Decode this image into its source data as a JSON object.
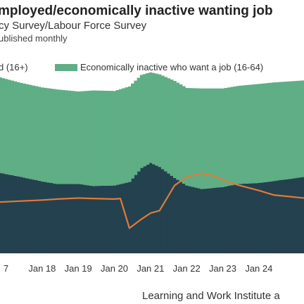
{
  "header": {
    "title": "mployed/economically inactive wanting job",
    "subtitle": "cy Survey/Labour Force Survey",
    "note": "ublished monthly"
  },
  "source": "Learning and Work Institute a",
  "chart_data": {
    "type": "area",
    "x_start": "2016-11",
    "x_end": "2025-04",
    "xticks": [
      {
        "date": "2017-01",
        "label": "7"
      },
      {
        "date": "2018-01",
        "label": "Jan 18"
      },
      {
        "date": "2019-01",
        "label": "Jan 19"
      },
      {
        "date": "2020-01",
        "label": "Jan 20"
      },
      {
        "date": "2021-01",
        "label": "Jan 21"
      },
      {
        "date": "2022-01",
        "label": "Jan 22"
      },
      {
        "date": "2023-01",
        "label": "Jan 23"
      },
      {
        "date": "2024-01",
        "label": "Jan 24"
      }
    ],
    "ylim": [
      0,
      3500000
    ],
    "legend_position": "top",
    "series": [
      {
        "name": "d (16+)",
        "kind": "stacked-area",
        "color": "#24414f",
        "points": [
          [
            "2016-11",
            1600000
          ],
          [
            "2017-06",
            1520000
          ],
          [
            "2018-01",
            1430000
          ],
          [
            "2018-06",
            1380000
          ],
          [
            "2019-01",
            1380000
          ],
          [
            "2019-06",
            1340000
          ],
          [
            "2020-01",
            1350000
          ],
          [
            "2020-06",
            1420000
          ],
          [
            "2020-10",
            1700000
          ],
          [
            "2021-01",
            1800000
          ],
          [
            "2021-04",
            1720000
          ],
          [
            "2021-09",
            1500000
          ],
          [
            "2022-01",
            1350000
          ],
          [
            "2022-06",
            1280000
          ],
          [
            "2023-01",
            1320000
          ],
          [
            "2023-06",
            1380000
          ],
          [
            "2024-01",
            1400000
          ],
          [
            "2024-06",
            1440000
          ],
          [
            "2025-04",
            1520000
          ]
        ]
      },
      {
        "name": "Economically inactive who want a job (16-64)",
        "kind": "stacked-area",
        "color": "#5fae85",
        "points": [
          [
            "2016-11",
            1900000
          ],
          [
            "2017-06",
            1870000
          ],
          [
            "2018-01",
            1870000
          ],
          [
            "2018-06",
            1880000
          ],
          [
            "2019-01",
            1840000
          ],
          [
            "2019-06",
            1900000
          ],
          [
            "2020-01",
            1880000
          ],
          [
            "2020-06",
            1900000
          ],
          [
            "2020-10",
            1850000
          ],
          [
            "2021-01",
            1800000
          ],
          [
            "2021-04",
            1840000
          ],
          [
            "2021-09",
            1930000
          ],
          [
            "2022-01",
            1940000
          ],
          [
            "2022-06",
            2000000
          ],
          [
            "2023-01",
            1960000
          ],
          [
            "2023-06",
            1950000
          ],
          [
            "2024-01",
            1970000
          ],
          [
            "2024-06",
            1960000
          ],
          [
            "2025-04",
            1920000
          ]
        ]
      },
      {
        "name": "",
        "kind": "line",
        "color": "#e07b39",
        "points": [
          [
            "2016-11",
            1020000
          ],
          [
            "2017-06",
            1040000
          ],
          [
            "2018-01",
            1060000
          ],
          [
            "2018-06",
            1080000
          ],
          [
            "2019-01",
            1100000
          ],
          [
            "2019-06",
            1090000
          ],
          [
            "2020-01",
            1080000
          ],
          [
            "2020-03",
            1090000
          ],
          [
            "2020-06",
            500000
          ],
          [
            "2020-10",
            680000
          ],
          [
            "2021-01",
            800000
          ],
          [
            "2021-04",
            850000
          ],
          [
            "2021-09",
            1350000
          ],
          [
            "2022-01",
            1520000
          ],
          [
            "2022-06",
            1590000
          ],
          [
            "2022-10",
            1540000
          ],
          [
            "2023-01",
            1460000
          ],
          [
            "2023-06",
            1360000
          ],
          [
            "2024-01",
            1250000
          ],
          [
            "2024-06",
            1160000
          ],
          [
            "2025-04",
            1100000
          ]
        ]
      }
    ]
  }
}
